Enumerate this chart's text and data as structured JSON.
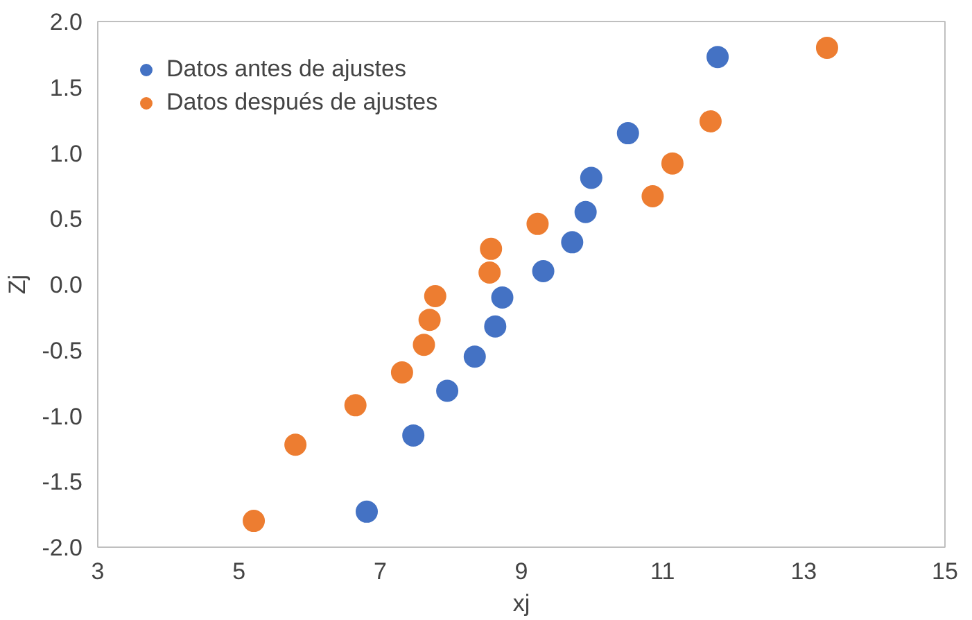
{
  "chart_data": {
    "type": "scatter",
    "xlabel": "xj",
    "ylabel": "Zj",
    "xlim": [
      3,
      15
    ],
    "ylim": [
      -2,
      2
    ],
    "xticks": [
      3,
      5,
      7,
      9,
      11,
      13,
      15
    ],
    "yticks": [
      {
        "value": -2,
        "label": "-2.0"
      },
      -1.5,
      {
        "value": -1,
        "label": "-1.0"
      },
      -0.5,
      {
        "value": 0,
        "label": "0.0"
      },
      0.5,
      {
        "value": 1,
        "label": "1.0"
      },
      1.5,
      {
        "value": 2,
        "label": "2.0"
      }
    ],
    "grid": false,
    "legend": "top left",
    "marker": "circle",
    "series": [
      {
        "name": "Datos antes de ajustes",
        "color": "#4472c4",
        "x": [
          6.81,
          7.47,
          7.95,
          8.34,
          8.63,
          8.73,
          9.31,
          9.72,
          9.91,
          9.99,
          10.51,
          11.78
        ],
        "values": [
          -1.73,
          -1.15,
          -0.81,
          -0.55,
          -0.32,
          -0.1,
          0.1,
          0.32,
          0.55,
          0.81,
          1.15,
          1.73
        ]
      },
      {
        "name": "Datos después de ajustes",
        "color": "#ed7d31",
        "x": [
          5.21,
          5.8,
          6.65,
          7.31,
          7.62,
          7.7,
          7.78,
          8.55,
          8.57,
          9.23,
          10.86,
          11.14,
          11.68,
          13.33
        ],
        "values": [
          -1.8,
          -1.22,
          -0.92,
          -0.67,
          -0.46,
          -0.27,
          -0.09,
          0.09,
          0.27,
          0.46,
          0.67,
          0.92,
          1.24,
          1.8
        ]
      }
    ]
  }
}
